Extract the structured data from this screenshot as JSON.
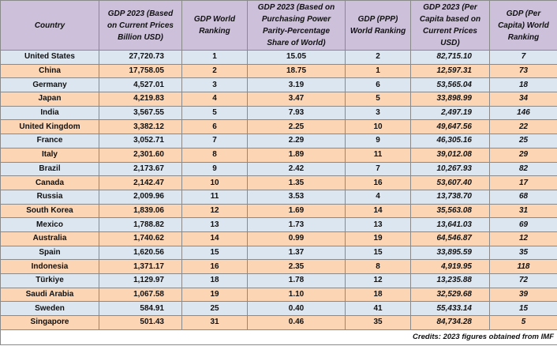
{
  "table": {
    "header": [
      "Country",
      "GDP 2023 (Based on Current Prices Billion USD)",
      "GDP World Ranking",
      "GDP 2023 (Based on Purchasing Power Parity-Percentage Share of World)",
      "GDP (PPP) World Ranking",
      "GDP 2023 (Per Capita based on Current Prices USD)",
      "GDP (Per Capita) World Ranking"
    ],
    "rows": [
      [
        "United States",
        "27,720.73",
        "1",
        "15.05",
        "2",
        "82,715.10",
        "7"
      ],
      [
        "China",
        "17,758.05",
        "2",
        "18.75",
        "1",
        "12,597.31",
        "73"
      ],
      [
        "Germany",
        "4,527.01",
        "3",
        "3.19",
        "6",
        "53,565.04",
        "18"
      ],
      [
        "Japan",
        "4,219.83",
        "4",
        "3.47",
        "5",
        "33,898.99",
        "34"
      ],
      [
        "India",
        "3,567.55",
        "5",
        "7.93",
        "3",
        "2,497.19",
        "146"
      ],
      [
        "United Kingdom",
        "3,382.12",
        "6",
        "2.25",
        "10",
        "49,647.56",
        "22"
      ],
      [
        "France",
        "3,052.71",
        "7",
        "2.29",
        "9",
        "46,305.16",
        "25"
      ],
      [
        "Italy",
        "2,301.60",
        "8",
        "1.89",
        "11",
        "39,012.08",
        "29"
      ],
      [
        "Brazil",
        "2,173.67",
        "9",
        "2.42",
        "7",
        "10,267.93",
        "82"
      ],
      [
        "Canada",
        "2,142.47",
        "10",
        "1.35",
        "16",
        "53,607.40",
        "17"
      ],
      [
        "Russia",
        "2,009.96",
        "11",
        "3.53",
        "4",
        "13,738.70",
        "68"
      ],
      [
        "South Korea",
        "1,839.06",
        "12",
        "1.69",
        "14",
        "35,563.08",
        "31"
      ],
      [
        "Mexico",
        "1,788.82",
        "13",
        "1.73",
        "13",
        "13,641.03",
        "69"
      ],
      [
        "Australia",
        "1,740.62",
        "14",
        "0.99",
        "19",
        "64,546.87",
        "12"
      ],
      [
        "Spain",
        "1,620.56",
        "15",
        "1.37",
        "15",
        "33,895.59",
        "35"
      ],
      [
        "Indonesia",
        "1,371.17",
        "16",
        "2.35",
        "8",
        "4,919.95",
        "118"
      ],
      [
        "Türkiye",
        "1,129.97",
        "18",
        "1.78",
        "12",
        "13,235.88",
        "72"
      ],
      [
        "Saudi Arabia",
        "1,067.58",
        "19",
        "1.10",
        "18",
        "32,529.68",
        "39"
      ],
      [
        "Sweden",
        "584.91",
        "25",
        "0.40",
        "41",
        "55,433.14",
        "15"
      ],
      [
        "Singapore",
        "501.43",
        "31",
        "0.46",
        "35",
        "84,734.28",
        "5"
      ]
    ],
    "credits": "Credits: 2023 figures obtained from IMF"
  }
}
